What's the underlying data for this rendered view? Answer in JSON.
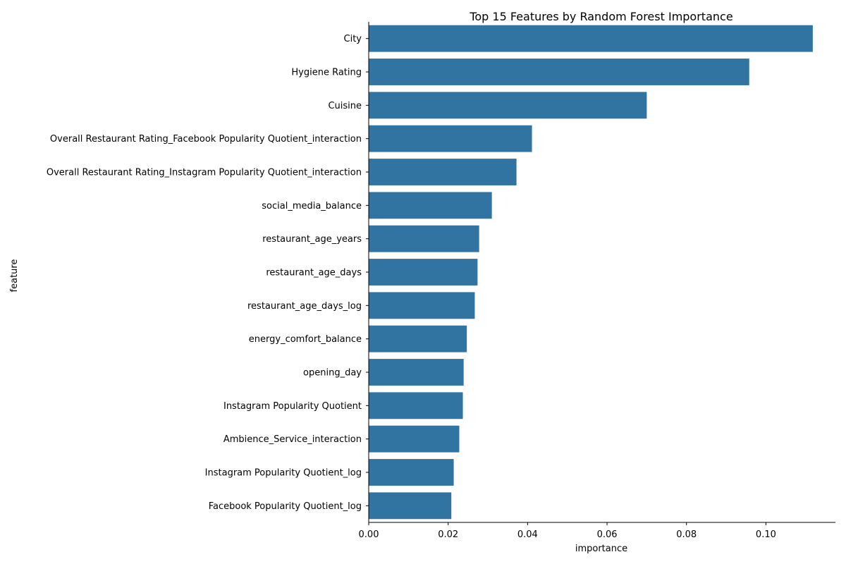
{
  "chart_data": {
    "type": "bar",
    "orientation": "horizontal",
    "title": "Top 15 Features by Random Forest Importance",
    "xlabel": "importance",
    "ylabel": "feature",
    "categories": [
      "City",
      "Hygiene Rating",
      "Cuisine",
      "Overall Restaurant Rating_Facebook Popularity Quotient_interaction",
      "Overall Restaurant Rating_Instagram Popularity Quotient_interaction",
      "social_media_balance",
      "restaurant_age_years",
      "restaurant_age_days",
      "restaurant_age_days_log",
      "energy_comfort_balance",
      "opening_day",
      "Instagram Popularity Quotient",
      "Ambience_Service_interaction",
      "Instagram Popularity Quotient_log",
      "Facebook Popularity Quotient_log"
    ],
    "values": [
      0.1118,
      0.0958,
      0.07,
      0.0411,
      0.0372,
      0.031,
      0.0278,
      0.0274,
      0.0267,
      0.0247,
      0.0239,
      0.0237,
      0.0228,
      0.0214,
      0.0208
    ],
    "xlim": [
      0,
      0.1175
    ],
    "xticks": [
      "0.00",
      "0.02",
      "0.04",
      "0.06",
      "0.08",
      "0.10"
    ],
    "grid": false,
    "colors": {
      "bar": "#3274a1",
      "axis": "#000000",
      "text": "#000000"
    }
  }
}
